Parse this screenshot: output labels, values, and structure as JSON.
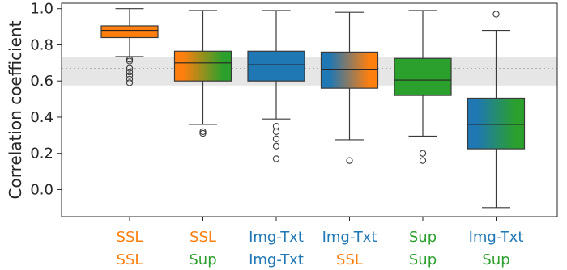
{
  "chart_data": {
    "type": "box",
    "ylabel": "Correlation coefficient",
    "ylim": [
      -0.15,
      1.03
    ],
    "yticks": [
      "0.0",
      "0.2",
      "0.4",
      "0.6",
      "0.8",
      "1.0"
    ],
    "reference_band": {
      "low": 0.575,
      "high": 0.735,
      "line": 0.67
    },
    "colors": {
      "ssl": "#ff7f0e",
      "sup": "#2ca02c",
      "imgtxt": "#1f77b4",
      "band": "#e6e6e6",
      "median": "#262626"
    },
    "categories": [
      {
        "top": "SSL",
        "bottom": "SSL",
        "top_color": "#ff7f0e",
        "bottom_color": "#ff7f0e",
        "fill": [
          "#ff7f0e",
          "#ff7f0e"
        ]
      },
      {
        "top": "SSL",
        "bottom": "Sup",
        "top_color": "#ff7f0e",
        "bottom_color": "#2ca02c",
        "fill": [
          "#ff7f0e",
          "#2ca02c"
        ]
      },
      {
        "top": "Img-Txt",
        "bottom": "Img-Txt",
        "top_color": "#1f77b4",
        "bottom_color": "#1f77b4",
        "fill": [
          "#1f77b4",
          "#1f77b4"
        ]
      },
      {
        "top": "Img-Txt",
        "bottom": "SSL",
        "top_color": "#1f77b4",
        "bottom_color": "#ff7f0e",
        "fill": [
          "#1f77b4",
          "#ff7f0e"
        ]
      },
      {
        "top": "Sup",
        "bottom": "Sup",
        "top_color": "#2ca02c",
        "bottom_color": "#2ca02c",
        "fill": [
          "#2ca02c",
          "#2ca02c"
        ]
      },
      {
        "top": "Img-Txt",
        "bottom": "Sup",
        "top_color": "#1f77b4",
        "bottom_color": "#2ca02c",
        "fill": [
          "#1f77b4",
          "#2ca02c"
        ]
      }
    ],
    "boxes": [
      {
        "whisker_low": 0.735,
        "q1": 0.84,
        "median": 0.88,
        "q3": 0.905,
        "whisker_high": 1.0,
        "outliers": [
          0.59,
          0.61,
          0.63,
          0.65,
          0.67,
          0.71,
          0.72
        ]
      },
      {
        "whisker_low": 0.36,
        "q1": 0.6,
        "median": 0.7,
        "q3": 0.765,
        "whisker_high": 0.99,
        "outliers": [
          0.31,
          0.32
        ]
      },
      {
        "whisker_low": 0.39,
        "q1": 0.6,
        "median": 0.69,
        "q3": 0.765,
        "whisker_high": 0.99,
        "outliers": [
          0.17,
          0.24,
          0.28,
          0.32,
          0.35
        ]
      },
      {
        "whisker_low": 0.275,
        "q1": 0.56,
        "median": 0.665,
        "q3": 0.76,
        "whisker_high": 0.98,
        "outliers": [
          0.16
        ]
      },
      {
        "whisker_low": 0.295,
        "q1": 0.52,
        "median": 0.605,
        "q3": 0.725,
        "whisker_high": 0.99,
        "outliers": [
          0.16,
          0.2
        ]
      },
      {
        "whisker_low": -0.1,
        "q1": 0.225,
        "median": 0.36,
        "q3": 0.505,
        "whisker_high": 0.88,
        "outliers": [
          0.97
        ]
      }
    ],
    "grid": false,
    "legend": "none"
  }
}
